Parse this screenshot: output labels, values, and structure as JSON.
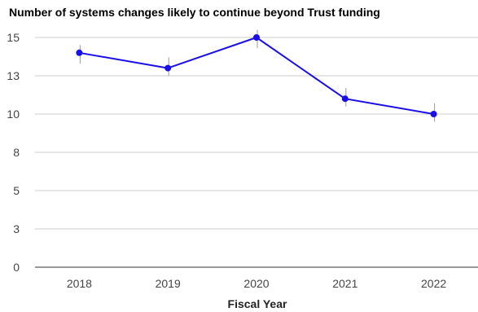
{
  "chart_data": {
    "type": "line",
    "title": "Number of systems changes likely to continue beyond Trust funding",
    "xlabel": "Fiscal Year",
    "ylabel": "",
    "categories": [
      "2018",
      "2019",
      "2020",
      "2021",
      "2022"
    ],
    "series": [
      {
        "values": [
          14,
          13,
          15,
          11,
          10
        ],
        "error_high": [
          14.5,
          13.7,
          15.5,
          11.7,
          10.7
        ],
        "error_low": [
          13.3,
          12.5,
          14.3,
          10.5,
          9.5
        ],
        "color": "#1a0fe8"
      }
    ],
    "ylim": [
      0,
      15
    ],
    "ytick_values": [
      0,
      2.5,
      5,
      7.5,
      10,
      12.5,
      15
    ],
    "ytick_labels": [
      "0",
      "3",
      "5",
      "8",
      "10",
      "13",
      "15"
    ],
    "grid": true,
    "legend": "none",
    "colors": {
      "line": "#1a0fe8",
      "point": "#1a0fe8",
      "error_bar": "#999999",
      "grid": "#cccccc",
      "baseline": "#333333"
    }
  }
}
